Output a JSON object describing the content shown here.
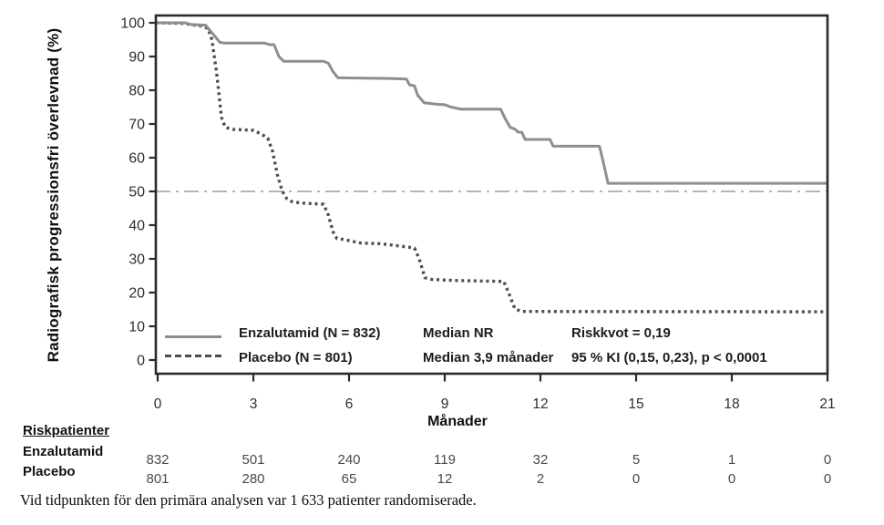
{
  "figure": {
    "y_axis_label": "Radiografisk progressionsfri överlevnad (%)",
    "x_axis_label": "Månader",
    "footnote": "Vid tidpunkten för den primära analysen var 1 633 patienter randomiserade."
  },
  "legend": {
    "rows": [
      {
        "label": "Enzalutamid (N = 832)",
        "median": "Median NR",
        "stat": "Riskkvot = 0,19"
      },
      {
        "label": "Placebo (N = 801)",
        "median": "Median 3,9 månader",
        "stat": "95 % KI (0,15, 0,23), p < 0,0001"
      }
    ]
  },
  "risk_table": {
    "title": "Riskpatienter",
    "rows": [
      {
        "label": "Enzalutamid",
        "values": [
          "832",
          "501",
          "240",
          "119",
          "32",
          "5",
          "1",
          "0"
        ]
      },
      {
        "label": "Placebo",
        "values": [
          "801",
          "280",
          "65",
          "12",
          "2",
          "0",
          "0",
          "0"
        ]
      }
    ]
  },
  "colors": {
    "enzalutamid": "#8e8e8e",
    "placebo": "#4d4d4d",
    "reference_line": "#b5b5b5",
    "axis": "#2a2a2a",
    "tick_text": "#2e2e2e"
  },
  "chart_data": {
    "type": "line",
    "subtype": "kaplan-meier",
    "title": "",
    "xlabel": "Månader",
    "ylabel": "Radiografisk progressionsfri överlevnad (%)",
    "xlim": [
      0,
      21
    ],
    "ylim": [
      0,
      100
    ],
    "x_ticks": [
      0,
      3,
      6,
      9,
      12,
      15,
      18,
      21
    ],
    "y_ticks": [
      0,
      10,
      20,
      30,
      40,
      50,
      60,
      70,
      80,
      90,
      100
    ],
    "grid": false,
    "legend_position": "inside bottom-left",
    "reference_line": {
      "y": 50,
      "style": "dash-dot"
    },
    "series": [
      {
        "name": "Enzalutamid (N = 832)",
        "style": "solid",
        "median": "NR",
        "points": [
          [
            0,
            100
          ],
          [
            0.85,
            100
          ],
          [
            1.05,
            99.5
          ],
          [
            1.5,
            99.3
          ],
          [
            1.75,
            96.5
          ],
          [
            1.95,
            94.2
          ],
          [
            2.1,
            94
          ],
          [
            3.35,
            94
          ],
          [
            3.5,
            93.5
          ],
          [
            3.65,
            93.5
          ],
          [
            3.8,
            90
          ],
          [
            3.95,
            88.6
          ],
          [
            5.2,
            88.6
          ],
          [
            5.35,
            88
          ],
          [
            5.5,
            85.5
          ],
          [
            5.65,
            83.7
          ],
          [
            7.3,
            83.5
          ],
          [
            7.8,
            83.3
          ],
          [
            7.9,
            81.6
          ],
          [
            8.05,
            81.3
          ],
          [
            8.15,
            78.5
          ],
          [
            8.35,
            76.3
          ],
          [
            8.6,
            76.0
          ],
          [
            8.8,
            75.8
          ],
          [
            9.0,
            75.7
          ],
          [
            9.2,
            75.0
          ],
          [
            9.5,
            74.4
          ],
          [
            10.75,
            74.4
          ],
          [
            10.9,
            71.5
          ],
          [
            11.05,
            69.0
          ],
          [
            11.2,
            68.5
          ],
          [
            11.3,
            67.6
          ],
          [
            11.42,
            67.5
          ],
          [
            11.52,
            65.4
          ],
          [
            12.3,
            65.4
          ],
          [
            12.4,
            63.4
          ],
          [
            13.85,
            63.4
          ],
          [
            14.0,
            57.5
          ],
          [
            14.12,
            52.4
          ],
          [
            21,
            52.4
          ]
        ]
      },
      {
        "name": "Placebo (N = 801)",
        "style": "dotted",
        "median": "3,9",
        "points": [
          [
            0,
            100
          ],
          [
            0.8,
            99.8
          ],
          [
            1.1,
            99.4
          ],
          [
            1.4,
            99.0
          ],
          [
            1.58,
            98.3
          ],
          [
            1.7,
            95
          ],
          [
            1.85,
            85
          ],
          [
            2.0,
            72
          ],
          [
            2.12,
            69
          ],
          [
            2.35,
            68.4
          ],
          [
            3.0,
            68.1
          ],
          [
            3.25,
            67
          ],
          [
            3.45,
            65.8
          ],
          [
            3.6,
            62
          ],
          [
            3.75,
            55
          ],
          [
            3.9,
            50.2
          ],
          [
            4.05,
            47.8
          ],
          [
            4.2,
            47
          ],
          [
            4.45,
            46.6
          ],
          [
            5.2,
            46.2
          ],
          [
            5.35,
            43
          ],
          [
            5.5,
            38
          ],
          [
            5.62,
            36
          ],
          [
            5.8,
            35.8
          ],
          [
            6.35,
            34.7
          ],
          [
            7.0,
            34.5
          ],
          [
            7.85,
            33.5
          ],
          [
            8.05,
            33.2
          ],
          [
            8.2,
            30
          ],
          [
            8.38,
            24.4
          ],
          [
            8.6,
            23.9
          ],
          [
            9.3,
            23.6
          ],
          [
            10.85,
            23.3
          ],
          [
            11.0,
            20
          ],
          [
            11.2,
            15.2
          ],
          [
            11.4,
            14.4
          ],
          [
            21,
            14.3
          ]
        ]
      }
    ]
  }
}
